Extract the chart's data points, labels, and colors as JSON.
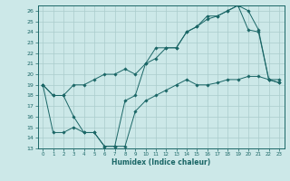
{
  "xlabel": "Humidex (Indice chaleur)",
  "xlim": [
    -0.5,
    23.5
  ],
  "ylim": [
    13,
    26.5
  ],
  "yticks": [
    13,
    14,
    15,
    16,
    17,
    18,
    19,
    20,
    21,
    22,
    23,
    24,
    25,
    26
  ],
  "xticks": [
    0,
    1,
    2,
    3,
    4,
    5,
    6,
    7,
    8,
    9,
    10,
    11,
    12,
    13,
    14,
    15,
    16,
    17,
    18,
    19,
    20,
    21,
    22,
    23
  ],
  "bg_color": "#cce8e8",
  "line_color": "#1a6666",
  "grid_color": "#aacccc",
  "line1_x": [
    0,
    1,
    2,
    3,
    4,
    5,
    6,
    7,
    8,
    9,
    10,
    11,
    12,
    13,
    14,
    15,
    16,
    17,
    18,
    19,
    20,
    21,
    22,
    23
  ],
  "line1_y": [
    19.0,
    18.0,
    18.0,
    19.0,
    19.0,
    19.5,
    20.0,
    20.0,
    20.5,
    20.0,
    21.0,
    22.5,
    22.5,
    22.5,
    24.0,
    24.5,
    25.2,
    25.5,
    26.0,
    26.5,
    26.0,
    24.2,
    19.5,
    19.2
  ],
  "line2_x": [
    0,
    1,
    2,
    3,
    4,
    5,
    6,
    7,
    8,
    9,
    10,
    11,
    12,
    13,
    14,
    15,
    16,
    17,
    18,
    19,
    20,
    21,
    22,
    23
  ],
  "line2_y": [
    19.0,
    14.5,
    14.5,
    15.0,
    14.5,
    14.5,
    13.2,
    13.2,
    13.2,
    16.5,
    17.5,
    18.0,
    18.5,
    19.0,
    19.5,
    19.0,
    19.0,
    19.2,
    19.5,
    19.5,
    19.8,
    19.8,
    19.5,
    19.5
  ],
  "line3_x": [
    0,
    1,
    2,
    3,
    4,
    5,
    6,
    7,
    8,
    9,
    10,
    11,
    12,
    13,
    14,
    15,
    16,
    17,
    18,
    19,
    20,
    21,
    22,
    23
  ],
  "line3_y": [
    19.0,
    18.0,
    18.0,
    16.0,
    14.5,
    14.5,
    13.2,
    13.2,
    17.5,
    18.0,
    21.0,
    21.5,
    22.5,
    22.5,
    24.0,
    24.5,
    25.5,
    25.5,
    26.0,
    26.5,
    24.2,
    24.0,
    19.5,
    19.2
  ]
}
